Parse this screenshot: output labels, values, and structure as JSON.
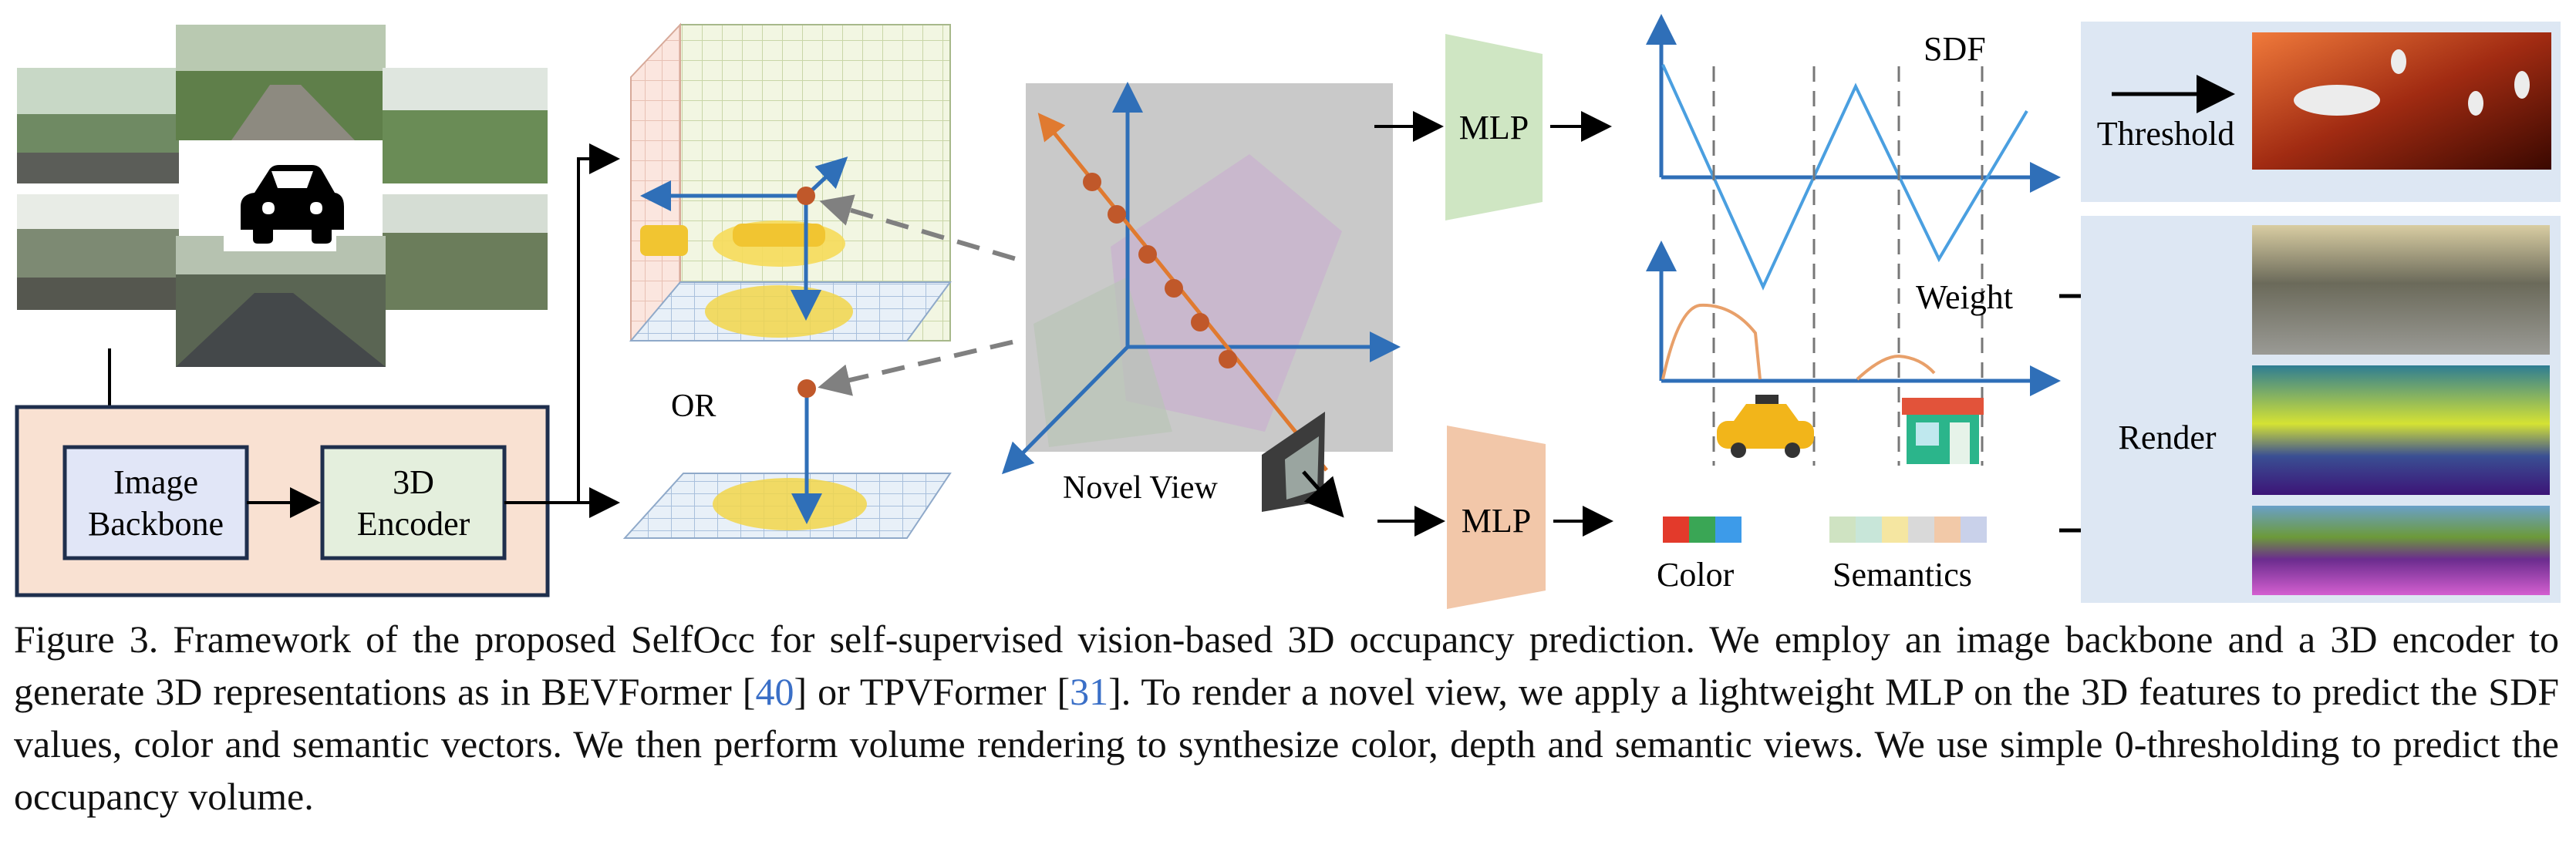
{
  "figure": {
    "labels": {
      "image_backbone": [
        "Image",
        "Backbone"
      ],
      "encoder_3d": [
        "3D",
        "Encoder"
      ],
      "or": "OR",
      "novel_view": "Novel View",
      "mlp_top": "MLP",
      "mlp_bottom": "MLP",
      "sdf": "SDF",
      "weight": "Weight",
      "threshold": "Threshold",
      "render": "Render",
      "color": "Color",
      "semantics": "Semantics"
    },
    "colors": {
      "accent_blue": "#2f6fb8",
      "ray_orange": "#e07a30",
      "ray_point": "#c0582a",
      "encoder_box": "#f9e1d2",
      "backbone_fill": "#e1e6f7",
      "encoder3d_fill": "#e4efdd",
      "mlp_green": "#cfe6c3",
      "mlp_orange": "#f2c7a9",
      "output_panel": "#dde7f3",
      "sdf_line": "#4a9fe0",
      "weight_curve": "#e8a06a"
    },
    "color_swatches": [
      "#e33a2b",
      "#3aa655",
      "#3d9be9"
    ],
    "semantic_swatches": [
      "#cfe3c2",
      "#c8e6d9",
      "#f5e6a1",
      "#d9d9d9",
      "#f2c9a8",
      "#c9d1ea"
    ]
  },
  "caption": {
    "figure_label": "Figure 3.",
    "text_a": " Framework of the proposed SelfOcc for self-supervised vision-based 3D occupancy prediction. We employ an image backbone and a 3D encoder to generate 3D representations as in BEVFormer [",
    "ref_a": "40",
    "text_b": "] or TPVFormer [",
    "ref_b": "31",
    "text_c": "]. To render a novel view, we apply a lightweight MLP on the 3D features to predict the SDF values, color and semantic vectors. We then perform volume rendering to synthesize color, depth and semantic views. We use simple 0-thresholding to predict the occupancy volume."
  }
}
